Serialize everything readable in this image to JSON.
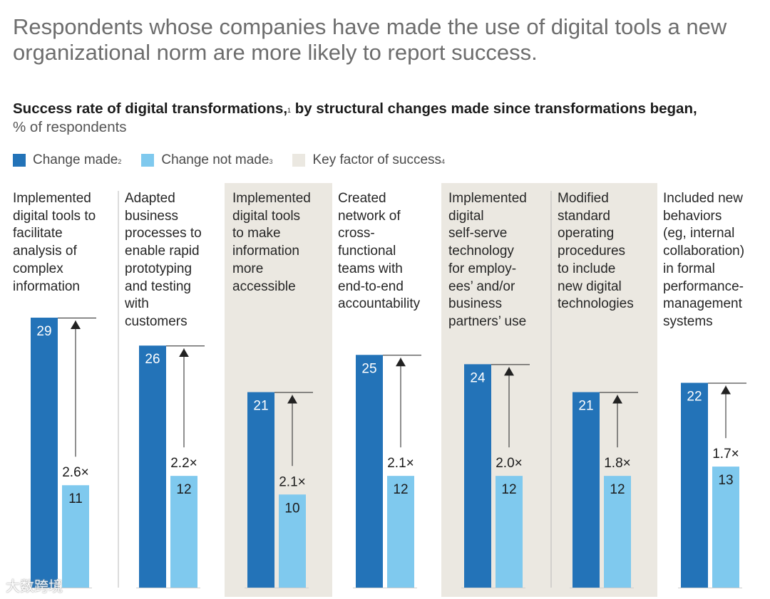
{
  "headline": "Respondents whose companies have made the use of digital tools a new organizational norm are more likely to report success.",
  "chart_data": {
    "type": "bar",
    "title": "Success rate of digital transformations,",
    "title_note": "1",
    "title_rest": " by structural changes made since transformations began,",
    "unit_label": "% of respondents",
    "legend": [
      {
        "name": "Change made",
        "note": "2",
        "color": "#2373b8"
      },
      {
        "name": "Change not made",
        "note": "3",
        "color": "#7fc9ee"
      },
      {
        "name": "Key factor of success",
        "note": "4",
        "color": "#ebe8e1"
      }
    ],
    "categories": [
      {
        "label": "Implemented digital tools to facilitate analysis of complex information",
        "lines": [
          "Implemented",
          "digital tools to",
          "facilitate",
          "analysis of",
          "complex",
          "information"
        ],
        "key_factor": false
      },
      {
        "label": "Adapted business processes to enable rapid prototyping and testing with customers",
        "lines": [
          "Adapted",
          "business",
          "processes to",
          "enable rapid",
          "prototyping",
          "and testing",
          "with",
          "customers"
        ],
        "key_factor": false
      },
      {
        "label": "Implemented digital tools to make information more accessible",
        "lines": [
          "Implemented",
          "digital tools",
          "to make",
          "information",
          "more",
          "accessible"
        ],
        "key_factor": true
      },
      {
        "label": "Created network of cross-functional teams with end-to-end accountability",
        "lines": [
          "Created",
          "network of",
          "cross-",
          "functional",
          "teams with",
          "end-to-end",
          "accountability"
        ],
        "key_factor": false
      },
      {
        "label": "Implemented digital self-serve technology for employees' and/or business partners' use",
        "lines": [
          "Implemented",
          "digital",
          "self-serve",
          "technology",
          "for employ-",
          "ees’ and/or",
          "business",
          "partners’ use"
        ],
        "key_factor": true
      },
      {
        "label": "Modified standard operating procedures to include new digital technologies",
        "lines": [
          "Modified",
          "standard",
          "operating",
          "procedures",
          "to include",
          "new digital",
          "technologies"
        ],
        "key_factor": true
      },
      {
        "label": "Included new behaviors (eg, internal collaboration) in formal performance-management systems",
        "lines": [
          "Included new",
          "behaviors",
          "(eg, internal",
          "collaboration)",
          "in formal",
          "performance-",
          "management",
          "systems"
        ],
        "key_factor": false
      }
    ],
    "series": [
      {
        "name": "Change made",
        "values": [
          29,
          26,
          21,
          25,
          24,
          21,
          22
        ]
      },
      {
        "name": "Change not made",
        "values": [
          11,
          12,
          10,
          12,
          12,
          12,
          13
        ]
      }
    ],
    "multipliers": [
      "2.6×",
      "2.2×",
      "2.1×",
      "2.1×",
      "2.0×",
      "1.8×",
      "1.7×"
    ],
    "ylim": [
      0,
      29
    ],
    "colors": {
      "change_made": "#2373b8",
      "change_not_made": "#7fc9ee",
      "key_factor": "#ebe8e1",
      "arrow": "#222222"
    }
  },
  "watermark": "大数跨境"
}
